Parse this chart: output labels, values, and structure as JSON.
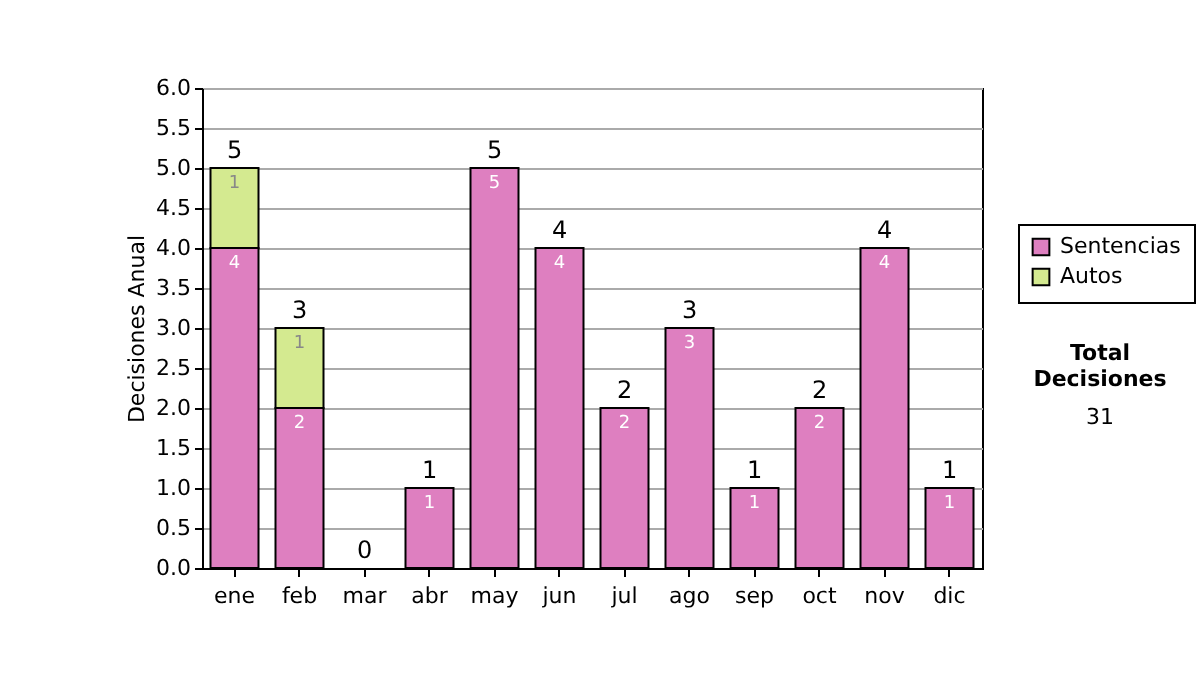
{
  "chart_data": {
    "type": "bar",
    "stacked": true,
    "ylabel": "Decisiones Anual",
    "categories": [
      "ene",
      "feb",
      "mar",
      "abr",
      "may",
      "jun",
      "jul",
      "ago",
      "sep",
      "oct",
      "nov",
      "dic"
    ],
    "series": [
      {
        "name": "Sentencias",
        "color": "#de7fc0",
        "values": [
          4,
          2,
          0,
          1,
          5,
          4,
          2,
          3,
          1,
          2,
          4,
          1
        ],
        "value_labels": [
          "4",
          "2",
          null,
          "1",
          "5",
          "4",
          "2",
          "3",
          "1",
          "2",
          "4",
          "1"
        ]
      },
      {
        "name": "Autos",
        "color": "#d4ea90",
        "values": [
          1,
          1,
          0,
          0,
          0,
          0,
          0,
          0,
          0,
          0,
          0,
          0
        ],
        "value_labels": [
          "1",
          "1",
          null,
          null,
          null,
          null,
          null,
          null,
          null,
          null,
          null,
          null
        ]
      }
    ],
    "totals": [
      "5",
      "3",
      "0",
      "1",
      "5",
      "4",
      "2",
      "3",
      "1",
      "2",
      "4",
      "1"
    ],
    "ylim": [
      0,
      6
    ],
    "yticks": [
      {
        "value": 0,
        "label": "0.0"
      },
      {
        "value": 0.5,
        "label": "0.5"
      },
      {
        "value": 1,
        "label": "1.0"
      },
      {
        "value": 1.5,
        "label": "1.5"
      },
      {
        "value": 2,
        "label": "2.0"
      },
      {
        "value": 2.5,
        "label": "2.5"
      },
      {
        "value": 3,
        "label": "3.0"
      },
      {
        "value": 3.5,
        "label": "3.5"
      },
      {
        "value": 4,
        "label": "4.0"
      },
      {
        "value": 4.5,
        "label": "4.5"
      },
      {
        "value": 5,
        "label": "5.0"
      },
      {
        "value": 5.5,
        "label": "5.5"
      },
      {
        "value": 6,
        "label": "6.0"
      }
    ],
    "grid": "y",
    "legend": "right",
    "annotations": [
      "Total Decisiones",
      "31"
    ]
  }
}
